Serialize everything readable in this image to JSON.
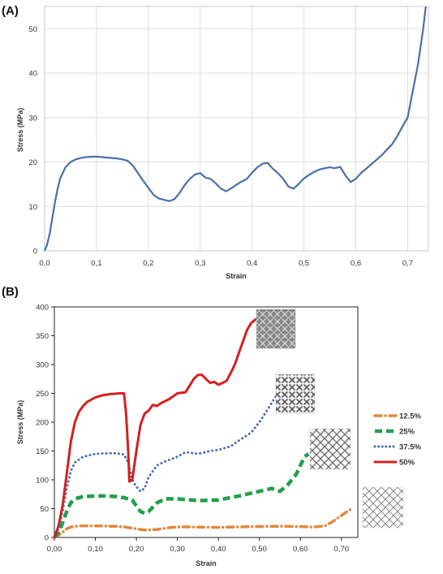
{
  "chart_data": [
    {
      "panel_label": "(A)",
      "type": "line",
      "title": "",
      "xlabel": "Strain",
      "ylabel": "Stress (MPa)",
      "xlim": [
        0,
        0.74
      ],
      "ylim": [
        0,
        55
      ],
      "xticks": [
        "0,0",
        "0,1",
        "0,2",
        "0,3",
        "0,4",
        "0,5",
        "0,6",
        "0,7"
      ],
      "xtick_values": [
        0,
        0.1,
        0.2,
        0.3,
        0.4,
        0.5,
        0.6,
        0.7
      ],
      "yticks": [
        "0",
        "10",
        "20",
        "30",
        "40",
        "50"
      ],
      "ytick_values": [
        0,
        10,
        20,
        30,
        40,
        50
      ],
      "grid": true,
      "legend": "none",
      "series": [
        {
          "color": "#4a6fa8",
          "points": [
            [
              0,
              0
            ],
            [
              0.005,
              1.5
            ],
            [
              0.01,
              4
            ],
            [
              0.015,
              7.5
            ],
            [
              0.02,
              11
            ],
            [
              0.025,
              14
            ],
            [
              0.03,
              16.3
            ],
            [
              0.04,
              18.8
            ],
            [
              0.05,
              20
            ],
            [
              0.06,
              20.6
            ],
            [
              0.07,
              20.9
            ],
            [
              0.08,
              21.1
            ],
            [
              0.09,
              21.2
            ],
            [
              0.1,
              21.2
            ],
            [
              0.11,
              21.1
            ],
            [
              0.12,
              21
            ],
            [
              0.13,
              20.9
            ],
            [
              0.14,
              20.8
            ],
            [
              0.15,
              20.6
            ],
            [
              0.16,
              20.3
            ],
            [
              0.17,
              19.2
            ],
            [
              0.18,
              17.5
            ],
            [
              0.19,
              15.8
            ],
            [
              0.2,
              14.2
            ],
            [
              0.21,
              12.6
            ],
            [
              0.22,
              11.8
            ],
            [
              0.23,
              11.5
            ],
            [
              0.24,
              11.2
            ],
            [
              0.25,
              11.6
            ],
            [
              0.26,
              13
            ],
            [
              0.27,
              14.8
            ],
            [
              0.28,
              16.2
            ],
            [
              0.29,
              17.2
            ],
            [
              0.3,
              17.5
            ],
            [
              0.31,
              16.5
            ],
            [
              0.32,
              16.2
            ],
            [
              0.33,
              15.2
            ],
            [
              0.34,
              14
            ],
            [
              0.35,
              13.4
            ],
            [
              0.36,
              14.1
            ],
            [
              0.37,
              14.9
            ],
            [
              0.38,
              15.6
            ],
            [
              0.39,
              16.2
            ],
            [
              0.4,
              17.6
            ],
            [
              0.41,
              18.8
            ],
            [
              0.42,
              19.6
            ],
            [
              0.43,
              19.8
            ],
            [
              0.44,
              18.5
            ],
            [
              0.45,
              17.5
            ],
            [
              0.46,
              16.2
            ],
            [
              0.47,
              14.5
            ],
            [
              0.48,
              14
            ],
            [
              0.49,
              15.1
            ],
            [
              0.5,
              16.3
            ],
            [
              0.51,
              17.1
            ],
            [
              0.52,
              17.8
            ],
            [
              0.53,
              18.3
            ],
            [
              0.54,
              18.6
            ],
            [
              0.55,
              18.8
            ],
            [
              0.56,
              18.6
            ],
            [
              0.57,
              18.9
            ],
            [
              0.58,
              17
            ],
            [
              0.59,
              15.5
            ],
            [
              0.6,
              16.2
            ],
            [
              0.61,
              17.5
            ],
            [
              0.62,
              18.5
            ],
            [
              0.63,
              19.5
            ],
            [
              0.64,
              20.5
            ],
            [
              0.65,
              21.5
            ],
            [
              0.66,
              22.8
            ],
            [
              0.67,
              24
            ],
            [
              0.68,
              25.8
            ],
            [
              0.69,
              28
            ],
            [
              0.7,
              30
            ],
            [
              0.71,
              36
            ],
            [
              0.72,
              42
            ],
            [
              0.73,
              50
            ],
            [
              0.735,
              55
            ]
          ]
        }
      ]
    },
    {
      "panel_label": "(B)",
      "type": "line",
      "title": "",
      "xlabel": "Strain",
      "ylabel": "Stress (MPa)",
      "xlim": [
        0,
        0.74
      ],
      "ylim": [
        0,
        400
      ],
      "xticks": [
        "0,00",
        "0,10",
        "0,20",
        "0,30",
        "0,40",
        "0,50",
        "0,60",
        "0,70"
      ],
      "xtick_values": [
        0,
        0.1,
        0.2,
        0.3,
        0.4,
        0.5,
        0.6,
        0.7
      ],
      "yticks": [
        "0",
        "50",
        "100",
        "150",
        "200",
        "250",
        "300",
        "350",
        "400"
      ],
      "ytick_values": [
        0,
        50,
        100,
        150,
        200,
        250,
        300,
        350,
        400
      ],
      "grid": false,
      "legend": "right",
      "series": [
        {
          "name": "12.5%",
          "color": "#e0893e",
          "style": "dash-dot",
          "points": [
            [
              0,
              0
            ],
            [
              0.01,
              4
            ],
            [
              0.02,
              9
            ],
            [
              0.03,
              15
            ],
            [
              0.04,
              18
            ],
            [
              0.06,
              20
            ],
            [
              0.1,
              20
            ],
            [
              0.15,
              19.5
            ],
            [
              0.17,
              18.5
            ],
            [
              0.2,
              15
            ],
            [
              0.22,
              13
            ],
            [
              0.25,
              14
            ],
            [
              0.28,
              17
            ],
            [
              0.3,
              18
            ],
            [
              0.32,
              18.5
            ],
            [
              0.35,
              18
            ],
            [
              0.4,
              17.5
            ],
            [
              0.45,
              18.5
            ],
            [
              0.5,
              19
            ],
            [
              0.55,
              19.5
            ],
            [
              0.6,
              19
            ],
            [
              0.63,
              18
            ],
            [
              0.66,
              20
            ],
            [
              0.68,
              28
            ],
            [
              0.7,
              38
            ],
            [
              0.72,
              48
            ],
            [
              0.73,
              50
            ]
          ]
        },
        {
          "name": "25%",
          "color": "#1fa04a",
          "style": "dashed",
          "points": [
            [
              0,
              0
            ],
            [
              0.01,
              8
            ],
            [
              0.02,
              25
            ],
            [
              0.03,
              45
            ],
            [
              0.04,
              60
            ],
            [
              0.05,
              67
            ],
            [
              0.07,
              71
            ],
            [
              0.1,
              72
            ],
            [
              0.13,
              72
            ],
            [
              0.15,
              71
            ],
            [
              0.17,
              69
            ],
            [
              0.19,
              65
            ],
            [
              0.21,
              45
            ],
            [
              0.22,
              42
            ],
            [
              0.23,
              45
            ],
            [
              0.25,
              60
            ],
            [
              0.27,
              67
            ],
            [
              0.3,
              67
            ],
            [
              0.35,
              64
            ],
            [
              0.4,
              65
            ],
            [
              0.45,
              72
            ],
            [
              0.5,
              80
            ],
            [
              0.53,
              85
            ],
            [
              0.55,
              80
            ],
            [
              0.57,
              92
            ],
            [
              0.59,
              110
            ],
            [
              0.61,
              140
            ],
            [
              0.62,
              145
            ]
          ]
        },
        {
          "name": "37.5%",
          "color": "#4a6fb0",
          "style": "dotted",
          "points": [
            [
              0,
              0
            ],
            [
              0.01,
              15
            ],
            [
              0.02,
              45
            ],
            [
              0.03,
              85
            ],
            [
              0.04,
              115
            ],
            [
              0.05,
              130
            ],
            [
              0.07,
              140
            ],
            [
              0.1,
              145
            ],
            [
              0.13,
              146
            ],
            [
              0.15,
              146
            ],
            [
              0.17,
              144
            ],
            [
              0.18,
              130
            ],
            [
              0.19,
              100
            ],
            [
              0.2,
              88
            ],
            [
              0.21,
              80
            ],
            [
              0.22,
              85
            ],
            [
              0.23,
              105
            ],
            [
              0.25,
              125
            ],
            [
              0.27,
              132
            ],
            [
              0.3,
              140
            ],
            [
              0.32,
              148
            ],
            [
              0.35,
              145
            ],
            [
              0.38,
              150
            ],
            [
              0.4,
              152
            ],
            [
              0.43,
              158
            ],
            [
              0.45,
              168
            ],
            [
              0.48,
              182
            ],
            [
              0.5,
              200
            ],
            [
              0.52,
              222
            ],
            [
              0.54,
              245
            ]
          ]
        },
        {
          "name": "50%",
          "color": "#d42020",
          "style": "solid",
          "points": [
            [
              0,
              0
            ],
            [
              0.01,
              20
            ],
            [
              0.02,
              55
            ],
            [
              0.03,
              110
            ],
            [
              0.04,
              165
            ],
            [
              0.05,
              200
            ],
            [
              0.06,
              218
            ],
            [
              0.07,
              228
            ],
            [
              0.08,
              235
            ],
            [
              0.1,
              243
            ],
            [
              0.12,
              247
            ],
            [
              0.14,
              249
            ],
            [
              0.16,
              250
            ],
            [
              0.17,
              250
            ],
            [
              0.175,
              215
            ],
            [
              0.18,
              150
            ],
            [
              0.183,
              97
            ],
            [
              0.19,
              100
            ],
            [
              0.2,
              150
            ],
            [
              0.21,
              195
            ],
            [
              0.22,
              215
            ],
            [
              0.23,
              220
            ],
            [
              0.24,
              230
            ],
            [
              0.25,
              228
            ],
            [
              0.26,
              233
            ],
            [
              0.28,
              240
            ],
            [
              0.3,
              250
            ],
            [
              0.32,
              252
            ],
            [
              0.34,
              275
            ],
            [
              0.35,
              282
            ],
            [
              0.36,
              282
            ],
            [
              0.37,
              275
            ],
            [
              0.38,
              268
            ],
            [
              0.39,
              270
            ],
            [
              0.4,
              265
            ],
            [
              0.41,
              268
            ],
            [
              0.42,
              272
            ],
            [
              0.43,
              285
            ],
            [
              0.44,
              300
            ],
            [
              0.45,
              320
            ],
            [
              0.46,
              340
            ],
            [
              0.47,
              360
            ],
            [
              0.48,
              372
            ],
            [
              0.49,
              378
            ]
          ]
        }
      ]
    }
  ]
}
